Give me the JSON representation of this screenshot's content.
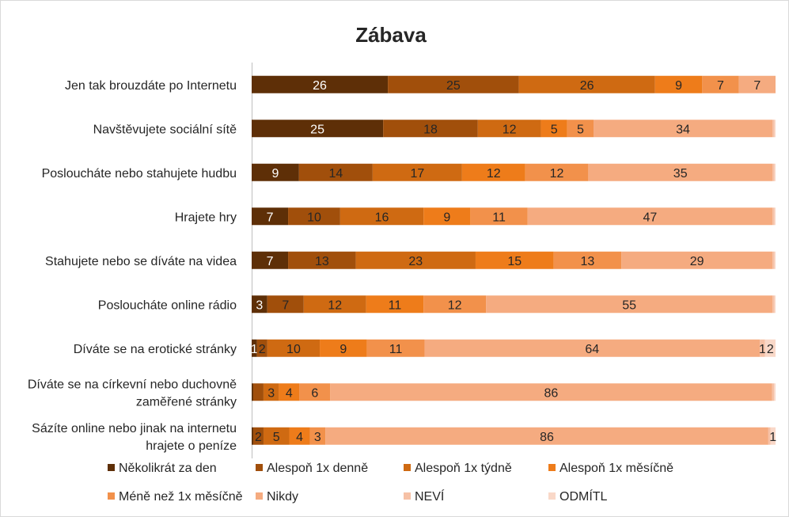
{
  "chart_data": {
    "type": "bar",
    "orientation": "horizontal",
    "stacked": true,
    "title": "Zábava",
    "xlabel": "",
    "ylabel": "",
    "xlim": [
      0,
      100
    ],
    "grid": false,
    "legend_position": "bottom",
    "categories": [
      [
        "Jen tak brouzdáte po Internetu"
      ],
      [
        "Navštěvujete sociální sítě"
      ],
      [
        "Posloucháte nebo stahujete hudbu"
      ],
      [
        "Hrajete hry"
      ],
      [
        "Stahujete nebo se díváte na videa"
      ],
      [
        "Posloucháte online rádio"
      ],
      [
        "Díváte se na erotické stránky"
      ],
      [
        "Díváte se na církevní nebo duchovně",
        "zaměřené stránky"
      ],
      [
        "Sázíte online nebo jinak na internetu",
        "hrajete o peníze"
      ]
    ],
    "series": [
      {
        "name": "Několikrát za den",
        "color": "#5e2f07",
        "label_color": "#ffffff",
        "values": [
          26,
          25,
          9,
          7,
          7,
          3,
          1,
          0.3,
          0.3
        ],
        "labels": [
          "26",
          "25",
          "9",
          "7",
          "7",
          "3",
          "1",
          "",
          ""
        ]
      },
      {
        "name": "Alespoň 1x denně",
        "color": "#a14f0b",
        "label_color": "#262626",
        "values": [
          25,
          18,
          14,
          10,
          13,
          7,
          2,
          2,
          2
        ],
        "labels": [
          "25",
          "18",
          "14",
          "10",
          "13",
          "7",
          "2",
          "",
          "2"
        ]
      },
      {
        "name": "Alespoň 1x týdně",
        "color": "#cf6a12",
        "label_color": "#262626",
        "values": [
          26,
          12,
          17,
          16,
          23,
          12,
          10,
          3,
          5
        ],
        "labels": [
          "26",
          "12",
          "17",
          "16",
          "23",
          "12",
          "10",
          "3",
          "5"
        ]
      },
      {
        "name": "Alespoň 1x měsíčně",
        "color": "#ee7c1a",
        "label_color": "#262626",
        "values": [
          9,
          5,
          12,
          9,
          15,
          11,
          9,
          4,
          4
        ],
        "labels": [
          "9",
          "5",
          "12",
          "9",
          "15",
          "11",
          "9",
          "4",
          "4"
        ]
      },
      {
        "name": "Méně než 1x měsíčně",
        "color": "#f2914b",
        "label_color": "#262626",
        "values": [
          7,
          5,
          12,
          11,
          13,
          12,
          11,
          6,
          3
        ],
        "labels": [
          "7",
          "5",
          "12",
          "11",
          "13",
          "12",
          "11",
          "6",
          "3"
        ]
      },
      {
        "name": "Nikdy",
        "color": "#f5ab80",
        "label_color": "#262626",
        "values": [
          7,
          34,
          35,
          47,
          29,
          55,
          64,
          86,
          86
        ],
        "labels": [
          "7",
          "34",
          "35",
          "47",
          "29",
          "55",
          "64",
          "86",
          "86"
        ]
      },
      {
        "name": "NEVÍ",
        "color": "#f6c1a6",
        "label_color": "#262626",
        "values": [
          0,
          0.4,
          0.4,
          0.4,
          0.4,
          0.4,
          1,
          0.4,
          0.4
        ],
        "labels": [
          "",
          "",
          "",
          "",
          "",
          "",
          "1",
          "",
          ""
        ]
      },
      {
        "name": "ODMÍTL",
        "color": "#f9d8c8",
        "label_color": "#262626",
        "values": [
          0,
          0.2,
          0.2,
          0.2,
          0.2,
          0.2,
          2,
          0.3,
          1
        ],
        "labels": [
          "",
          "",
          "",
          "",
          "",
          "",
          "2",
          "",
          "1"
        ]
      }
    ]
  }
}
